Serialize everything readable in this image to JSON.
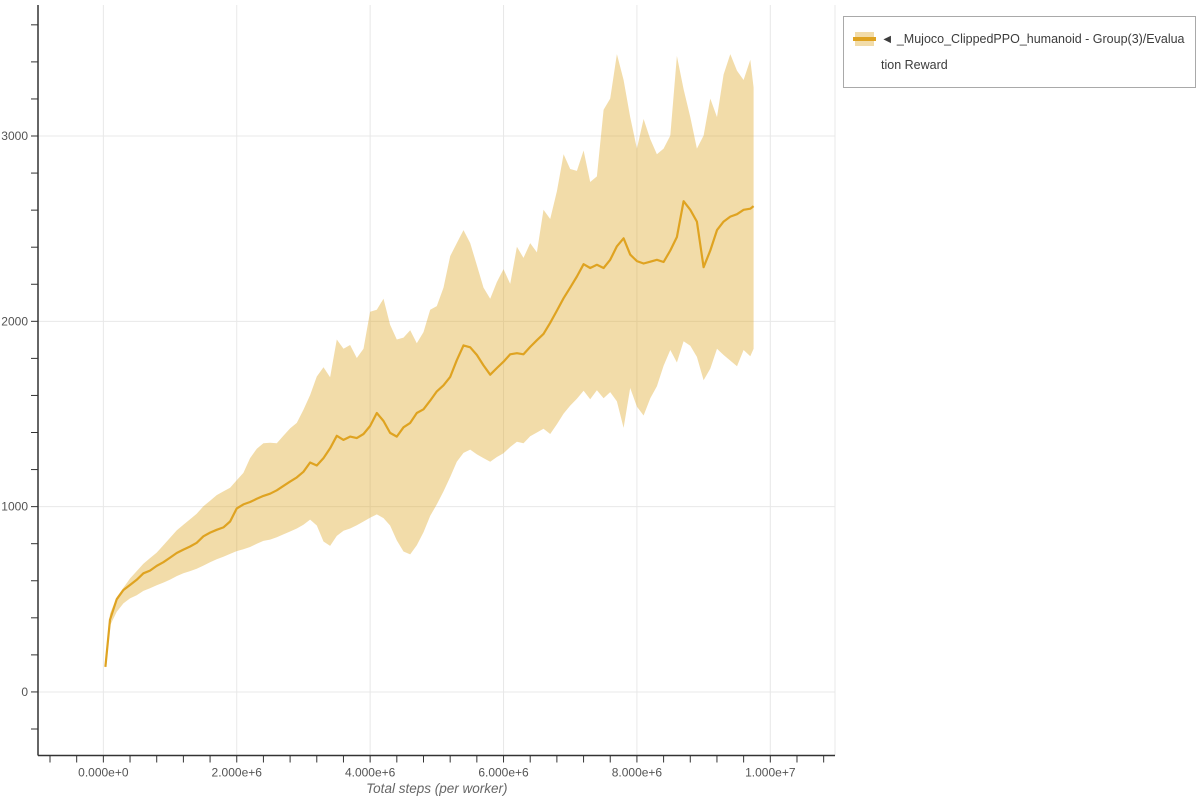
{
  "page": {
    "background": "#ffffff"
  },
  "legend": {
    "items": [
      {
        "label": "◄ _Mujoco_ClippedPPO_humanoid - Group(3)/Evaluation Reward",
        "band_color": "rgba(222,164,30,0.38)",
        "line_color": "#dfa321"
      }
    ]
  },
  "chart_data": {
    "type": "line",
    "title": "",
    "xlabel": "Total steps (per worker)",
    "ylabel": "",
    "grid": true,
    "legend_position": "top-right",
    "x_tick_labels": [
      "0.000e+0",
      "2.000e+6",
      "4.000e+6",
      "6.000e+6",
      "8.000e+6",
      "1.000e+7"
    ],
    "x_tick_values_millions": [
      0,
      2,
      4,
      6,
      8,
      10
    ],
    "y_tick_labels": [
      "0",
      "1000",
      "2000",
      "3000"
    ],
    "y_tick_values": [
      0,
      1000,
      2000,
      3000
    ],
    "x_minor_step_millions": 0.4,
    "y_minor_step": 200,
    "xlim_millions": [
      -0.98,
      10.97
    ],
    "ylim": [
      -343,
      3707
    ],
    "colors": {
      "band": "rgba(222,164,30,0.38)",
      "line": "#dfa321",
      "grid": "#e8e8e8",
      "plot_border": "#e8e8e8",
      "axis": "#333333",
      "tick_label": "#545454",
      "axis_label": "#666666"
    },
    "series": [
      {
        "name": "_Mujoco_ClippedPPO_humanoid - Group(3)/Evaluation Reward",
        "x_steps_millions": [
          0.03,
          0.1,
          0.2,
          0.3,
          0.4,
          0.5,
          0.6,
          0.7,
          0.8,
          0.9,
          1.0,
          1.1,
          1.2,
          1.3,
          1.4,
          1.5,
          1.6,
          1.7,
          1.8,
          1.9,
          2.0,
          2.1,
          2.2,
          2.3,
          2.4,
          2.5,
          2.6,
          2.7,
          2.8,
          2.9,
          3.0,
          3.1,
          3.2,
          3.3,
          3.4,
          3.5,
          3.6,
          3.7,
          3.8,
          3.9,
          4.0,
          4.1,
          4.2,
          4.3,
          4.4,
          4.5,
          4.6,
          4.7,
          4.8,
          4.9,
          5.0,
          5.1,
          5.2,
          5.3,
          5.4,
          5.5,
          5.6,
          5.7,
          5.8,
          5.9,
          6.0,
          6.1,
          6.2,
          6.3,
          6.4,
          6.5,
          6.6,
          6.7,
          6.8,
          6.9,
          7.0,
          7.1,
          7.2,
          7.3,
          7.4,
          7.5,
          7.6,
          7.7,
          7.8,
          7.9,
          8.0,
          8.1,
          8.2,
          8.3,
          8.4,
          8.5,
          8.6,
          8.7,
          8.8,
          8.9,
          9.0,
          9.1,
          9.2,
          9.3,
          9.4,
          9.5,
          9.6,
          9.7,
          9.75
        ],
        "mean": [
          135,
          390,
          500,
          550,
          577,
          605,
          640,
          655,
          680,
          700,
          725,
          750,
          768,
          785,
          805,
          840,
          860,
          875,
          888,
          920,
          990,
          1012,
          1025,
          1042,
          1058,
          1070,
          1088,
          1112,
          1135,
          1158,
          1188,
          1238,
          1222,
          1262,
          1315,
          1382,
          1360,
          1378,
          1370,
          1392,
          1435,
          1505,
          1462,
          1398,
          1378,
          1428,
          1452,
          1505,
          1525,
          1572,
          1622,
          1655,
          1700,
          1790,
          1870,
          1860,
          1818,
          1762,
          1712,
          1748,
          1782,
          1822,
          1828,
          1822,
          1862,
          1898,
          1932,
          1992,
          2058,
          2125,
          2182,
          2242,
          2308,
          2288,
          2305,
          2288,
          2332,
          2405,
          2448,
          2360,
          2325,
          2312,
          2322,
          2332,
          2320,
          2382,
          2455,
          2648,
          2602,
          2538,
          2292,
          2382,
          2492,
          2538,
          2565,
          2578,
          2602,
          2608,
          2622
        ],
        "lower": [
          128,
          358,
          432,
          478,
          505,
          522,
          545,
          560,
          576,
          590,
          606,
          625,
          640,
          652,
          665,
          682,
          700,
          716,
          730,
          745,
          760,
          770,
          782,
          800,
          815,
          822,
          835,
          850,
          866,
          882,
          902,
          930,
          898,
          812,
          788,
          842,
          870,
          882,
          900,
          920,
          940,
          958,
          938,
          898,
          818,
          758,
          742,
          792,
          862,
          950,
          1012,
          1082,
          1160,
          1242,
          1290,
          1308,
          1282,
          1262,
          1242,
          1268,
          1288,
          1322,
          1350,
          1342,
          1380,
          1400,
          1420,
          1392,
          1445,
          1502,
          1545,
          1582,
          1625,
          1580,
          1628,
          1585,
          1618,
          1568,
          1425,
          1640,
          1540,
          1492,
          1585,
          1650,
          1760,
          1845,
          1778,
          1892,
          1868,
          1808,
          1682,
          1745,
          1852,
          1818,
          1788,
          1758,
          1845,
          1812,
          1852
        ],
        "upper": [
          142,
          422,
          512,
          562,
          612,
          652,
          692,
          722,
          752,
          792,
          832,
          872,
          902,
          932,
          962,
          1002,
          1032,
          1062,
          1082,
          1102,
          1142,
          1182,
          1262,
          1312,
          1342,
          1345,
          1342,
          1382,
          1422,
          1452,
          1522,
          1602,
          1702,
          1752,
          1698,
          1902,
          1852,
          1872,
          1802,
          1852,
          2052,
          2062,
          2122,
          1982,
          1902,
          1912,
          1952,
          1882,
          1942,
          2062,
          2082,
          2182,
          2352,
          2422,
          2492,
          2422,
          2302,
          2182,
          2122,
          2212,
          2282,
          2202,
          2402,
          2342,
          2422,
          2372,
          2602,
          2552,
          2702,
          2902,
          2822,
          2812,
          2922,
          2752,
          2782,
          3142,
          3202,
          3442,
          3302,
          3102,
          2932,
          3092,
          2982,
          2902,
          2932,
          3002,
          3432,
          3252,
          3102,
          2932,
          3002,
          3202,
          3102,
          3332,
          3442,
          3352,
          3302,
          3412,
          3262
        ]
      }
    ]
  }
}
